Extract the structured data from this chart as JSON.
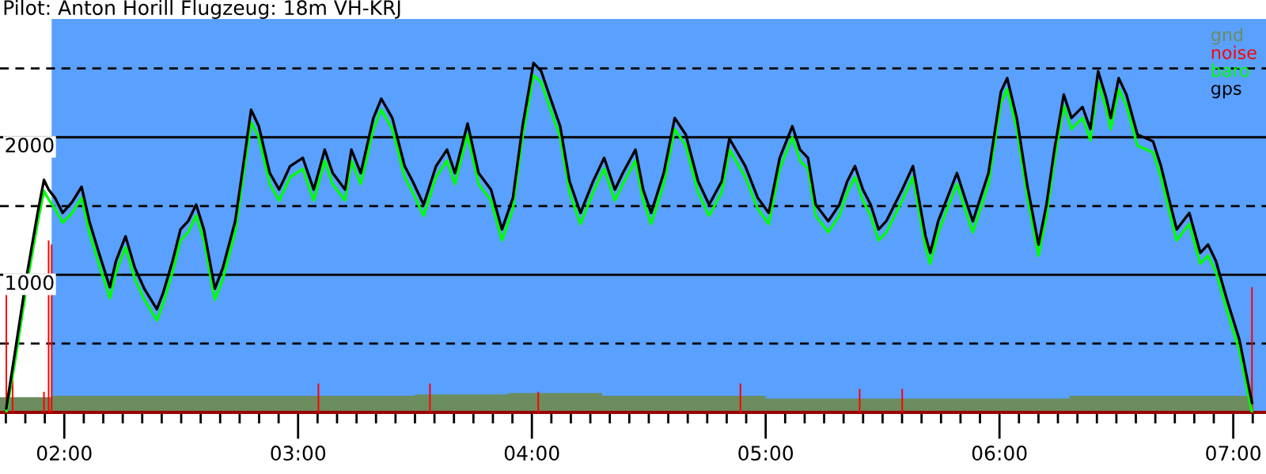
{
  "chart_data": {
    "type": "line",
    "title": "Pilot: Anton Horill Flugzeug: 18m VH-KRJ",
    "x": [
      1.752,
      1.792,
      1.839,
      1.886,
      1.913,
      1.933,
      1.96,
      1.993,
      2.034,
      2.074,
      2.107,
      2.148,
      2.195,
      2.221,
      2.262,
      2.302,
      2.342,
      2.396,
      2.423,
      2.463,
      2.497,
      2.53,
      2.564,
      2.597,
      2.644,
      2.678,
      2.731,
      2.765,
      2.799,
      2.832,
      2.879,
      2.919,
      2.966,
      3.02,
      3.067,
      3.114,
      3.148,
      3.201,
      3.228,
      3.268,
      3.322,
      3.356,
      3.403,
      3.456,
      3.49,
      3.537,
      3.59,
      3.637,
      3.671,
      3.725,
      3.772,
      3.825,
      3.872,
      3.919,
      3.96,
      4.007,
      4.04,
      4.074,
      4.121,
      4.161,
      4.208,
      4.262,
      4.309,
      4.355,
      4.389,
      4.443,
      4.476,
      4.51,
      4.564,
      4.611,
      4.658,
      4.711,
      4.758,
      4.812,
      4.845,
      4.913,
      4.966,
      5.013,
      5.06,
      5.114,
      5.147,
      5.181,
      5.214,
      5.268,
      5.315,
      5.349,
      5.382,
      5.416,
      5.449,
      5.483,
      5.516,
      5.584,
      5.63,
      5.684,
      5.704,
      5.738,
      5.818,
      5.852,
      5.886,
      5.953,
      6.006,
      6.033,
      6.074,
      6.12,
      6.167,
      6.201,
      6.235,
      6.275,
      6.308,
      6.355,
      6.389,
      6.422,
      6.456,
      6.476,
      6.51,
      6.543,
      6.59,
      6.657,
      6.691,
      6.724,
      6.758,
      6.812,
      6.859,
      6.892,
      6.926,
      6.973,
      7.026,
      7.06,
      7.08
    ],
    "series": [
      {
        "name": "gnd",
        "type": "area",
        "color": "#6b8c5f",
        "x": [
          1.725,
          1.95,
          2.5,
          3.0,
          3.5,
          3.9,
          4.3,
          4.6,
          5.0,
          5.5,
          6.0,
          6.3,
          6.6,
          7.0,
          7.087
        ],
        "values": [
          110,
          120,
          120,
          120,
          130,
          140,
          120,
          120,
          100,
          100,
          100,
          120,
          120,
          120,
          120
        ]
      },
      {
        "name": "noise",
        "type": "bar",
        "color": "#ff0000",
        "x": [
          1.752,
          1.779,
          1.913,
          1.933,
          1.946,
          3.087,
          3.564,
          4.027,
          4.892,
          5.402,
          5.584,
          7.08
        ],
        "values": [
          870,
          360,
          150,
          1250,
          1220,
          210,
          210,
          150,
          210,
          170,
          170,
          910
        ]
      },
      {
        "name": "baro",
        "color": "#00ff00",
        "values": [
          0,
          400,
          920,
          1380,
          1610,
          1550,
          1480,
          1380,
          1450,
          1560,
          1310,
          1080,
          830,
          1020,
          1200,
          970,
          820,
          670,
          790,
          1020,
          1250,
          1310,
          1430,
          1250,
          820,
          970,
          1310,
          1710,
          2110,
          2000,
          1660,
          1540,
          1710,
          1770,
          1540,
          1830,
          1660,
          1540,
          1830,
          1660,
          2060,
          2200,
          2060,
          1710,
          1600,
          1430,
          1710,
          1830,
          1660,
          2020,
          1660,
          1540,
          1250,
          1480,
          2000,
          2450,
          2400,
          2230,
          2000,
          1600,
          1370,
          1600,
          1770,
          1540,
          1660,
          1830,
          1540,
          1370,
          1660,
          2060,
          1940,
          1600,
          1430,
          1600,
          1910,
          1710,
          1480,
          1370,
          1770,
          2000,
          1830,
          1770,
          1430,
          1310,
          1430,
          1600,
          1710,
          1540,
          1430,
          1250,
          1310,
          1540,
          1710,
          1200,
          1080,
          1310,
          1660,
          1480,
          1310,
          1660,
          2250,
          2350,
          2060,
          1560,
          1140,
          1430,
          1830,
          2230,
          2060,
          2140,
          1980,
          2400,
          2210,
          2060,
          2350,
          2230,
          1940,
          1890,
          1710,
          1480,
          1250,
          1370,
          1080,
          1140,
          1020,
          740,
          450,
          160,
          0
        ]
      },
      {
        "name": "gps",
        "color": "#000000",
        "values": [
          30,
          470,
          990,
          1450,
          1690,
          1620,
          1560,
          1450,
          1530,
          1640,
          1390,
          1160,
          910,
          1100,
          1280,
          1050,
          900,
          750,
          870,
          1100,
          1330,
          1390,
          1510,
          1330,
          900,
          1050,
          1390,
          1790,
          2200,
          2080,
          1740,
          1620,
          1790,
          1850,
          1620,
          1910,
          1740,
          1620,
          1910,
          1740,
          2140,
          2280,
          2140,
          1790,
          1680,
          1510,
          1790,
          1910,
          1740,
          2100,
          1740,
          1620,
          1330,
          1560,
          2080,
          2540,
          2480,
          2310,
          2080,
          1680,
          1450,
          1680,
          1850,
          1620,
          1740,
          1910,
          1620,
          1450,
          1740,
          2140,
          2020,
          1680,
          1510,
          1680,
          1990,
          1790,
          1560,
          1450,
          1850,
          2080,
          1910,
          1850,
          1510,
          1390,
          1510,
          1680,
          1790,
          1620,
          1510,
          1330,
          1390,
          1620,
          1790,
          1280,
          1160,
          1390,
          1740,
          1560,
          1390,
          1740,
          2330,
          2430,
          2140,
          1640,
          1220,
          1510,
          1910,
          2310,
          2140,
          2220,
          2060,
          2480,
          2290,
          2140,
          2430,
          2310,
          2020,
          1970,
          1790,
          1560,
          1330,
          1450,
          1160,
          1220,
          1100,
          820,
          530,
          240,
          70
        ]
      }
    ],
    "xlim": [
      1.725,
      7.14
    ],
    "xticks": [
      {
        "value": 1.75,
        "label": null
      },
      {
        "value": 1.8333,
        "label": null
      },
      {
        "value": 1.9167,
        "label": null
      },
      {
        "value": 2,
        "label": "02:00"
      },
      {
        "value": 2.0833,
        "label": null
      },
      {
        "value": 2.1667,
        "label": null
      },
      {
        "value": 2.25,
        "label": null
      },
      {
        "value": 2.3333,
        "label": null
      },
      {
        "value": 2.4167,
        "label": null
      },
      {
        "value": 2.5,
        "label": null
      },
      {
        "value": 2.5833,
        "label": null
      },
      {
        "value": 2.6667,
        "label": null
      },
      {
        "value": 2.75,
        "label": null
      },
      {
        "value": 2.8333,
        "label": null
      },
      {
        "value": 2.9167,
        "label": null
      },
      {
        "value": 3,
        "label": "03:00"
      },
      {
        "value": 3.0833,
        "label": null
      },
      {
        "value": 3.1667,
        "label": null
      },
      {
        "value": 3.25,
        "label": null
      },
      {
        "value": 3.3333,
        "label": null
      },
      {
        "value": 3.4167,
        "label": null
      },
      {
        "value": 3.5,
        "label": null
      },
      {
        "value": 3.5833,
        "label": null
      },
      {
        "value": 3.6667,
        "label": null
      },
      {
        "value": 3.75,
        "label": null
      },
      {
        "value": 3.8333,
        "label": null
      },
      {
        "value": 3.9167,
        "label": null
      },
      {
        "value": 4,
        "label": "04:00"
      },
      {
        "value": 4.0833,
        "label": null
      },
      {
        "value": 4.1667,
        "label": null
      },
      {
        "value": 4.25,
        "label": null
      },
      {
        "value": 4.3333,
        "label": null
      },
      {
        "value": 4.4167,
        "label": null
      },
      {
        "value": 4.5,
        "label": null
      },
      {
        "value": 4.5833,
        "label": null
      },
      {
        "value": 4.6667,
        "label": null
      },
      {
        "value": 4.75,
        "label": null
      },
      {
        "value": 4.8333,
        "label": null
      },
      {
        "value": 4.9167,
        "label": null
      },
      {
        "value": 5,
        "label": "05:00"
      },
      {
        "value": 5.0833,
        "label": null
      },
      {
        "value": 5.1667,
        "label": null
      },
      {
        "value": 5.25,
        "label": null
      },
      {
        "value": 5.3333,
        "label": null
      },
      {
        "value": 5.4167,
        "label": null
      },
      {
        "value": 5.5,
        "label": null
      },
      {
        "value": 5.5833,
        "label": null
      },
      {
        "value": 5.6667,
        "label": null
      },
      {
        "value": 5.75,
        "label": null
      },
      {
        "value": 5.8333,
        "label": null
      },
      {
        "value": 5.9167,
        "label": null
      },
      {
        "value": 6,
        "label": "06:00"
      },
      {
        "value": 6.0833,
        "label": null
      },
      {
        "value": 6.1667,
        "label": null
      },
      {
        "value": 6.25,
        "label": null
      },
      {
        "value": 6.3333,
        "label": null
      },
      {
        "value": 6.4167,
        "label": null
      },
      {
        "value": 6.5,
        "label": null
      },
      {
        "value": 6.5833,
        "label": null
      },
      {
        "value": 6.6667,
        "label": null
      },
      {
        "value": 6.75,
        "label": null
      },
      {
        "value": 6.8333,
        "label": null
      },
      {
        "value": 6.9167,
        "label": null
      },
      {
        "value": 7,
        "label": "07:00"
      },
      {
        "value": 7.0833,
        "label": null
      }
    ],
    "ylim": [
      0,
      2860
    ],
    "yticks": [
      1000,
      2000
    ],
    "grid": "y",
    "ref_lines": [
      {
        "axis": "y",
        "value": 500,
        "color": "#000000",
        "line_style": "dashed"
      },
      {
        "axis": "y",
        "value": 1500,
        "color": "#000000",
        "line_style": "dashed"
      },
      {
        "axis": "y",
        "value": 2500,
        "color": "#000000",
        "line_style": "dashed"
      }
    ],
    "bands": [
      {
        "axis": "x",
        "from": 1.946,
        "to": 7.14,
        "color": "#5aa0ff"
      }
    ],
    "legend": "top right"
  }
}
